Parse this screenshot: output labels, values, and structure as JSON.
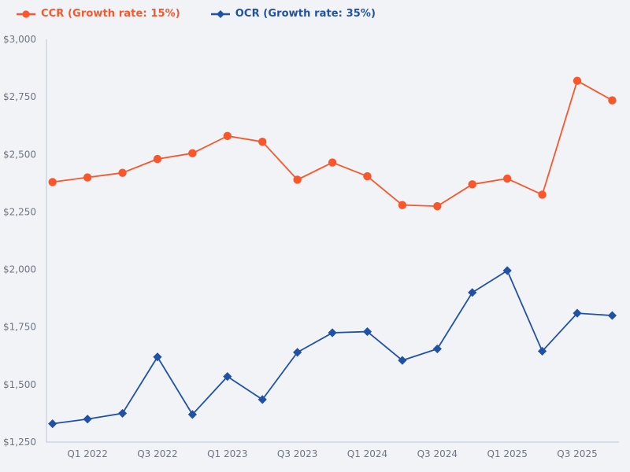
{
  "colors": {
    "background": "#f2f3f6",
    "axis_line": "#c6d0e2",
    "tick_text": "#6e7582",
    "ccr_orange": "#f9562b",
    "ocr_blue": "#1f52a6"
  },
  "legend": {
    "items": [
      {
        "label": "CCR (Growth rate: 15%)",
        "color": "#f9562b",
        "marker": "circle"
      },
      {
        "label": "OCR (Growth rate: 35%)",
        "color": "#1f52a6",
        "marker": "diamond"
      }
    ]
  },
  "chart_data": {
    "type": "line",
    "title": "",
    "xlabel": "",
    "ylabel": "",
    "ylim": [
      1250,
      3000
    ],
    "grid": false,
    "legend_position": "top-left",
    "y_ticks": [
      {
        "value": 3000,
        "label": "$3,000"
      },
      {
        "value": 2750,
        "label": "$2,750"
      },
      {
        "value": 2500,
        "label": "$2,500"
      },
      {
        "value": 2250,
        "label": "$2,250"
      },
      {
        "value": 2000,
        "label": "$2,000"
      },
      {
        "value": 1750,
        "label": "$1,750"
      },
      {
        "value": 1500,
        "label": "$1,500"
      },
      {
        "value": 1250,
        "label": "$1,250"
      }
    ],
    "x_ticks": [
      {
        "index": 1,
        "label": "Q1 2022"
      },
      {
        "index": 3,
        "label": "Q3 2022"
      },
      {
        "index": 5,
        "label": "Q1 2023"
      },
      {
        "index": 7,
        "label": "Q3 2023"
      },
      {
        "index": 9,
        "label": "Q1 2024"
      },
      {
        "index": 11,
        "label": "Q3 2024"
      },
      {
        "index": 13,
        "label": "Q1 2025"
      },
      {
        "index": 15,
        "label": "Q3 2025"
      }
    ],
    "series": [
      {
        "name": "CCR (Growth rate: 15%)",
        "color": "#f9562b",
        "marker": "circle",
        "values": [
          2380,
          2400,
          2420,
          2480,
          2505,
          2580,
          2555,
          2390,
          2465,
          2405,
          2280,
          2275,
          2370,
          2395,
          2325,
          2820,
          2735
        ]
      },
      {
        "name": "OCR (Growth rate: 35%)",
        "color": "#1f52a6",
        "marker": "diamond",
        "values": [
          1330,
          1350,
          1375,
          1620,
          1370,
          1535,
          1435,
          1640,
          1725,
          1730,
          1605,
          1655,
          1900,
          1995,
          1645,
          1810,
          1800
        ]
      }
    ]
  }
}
